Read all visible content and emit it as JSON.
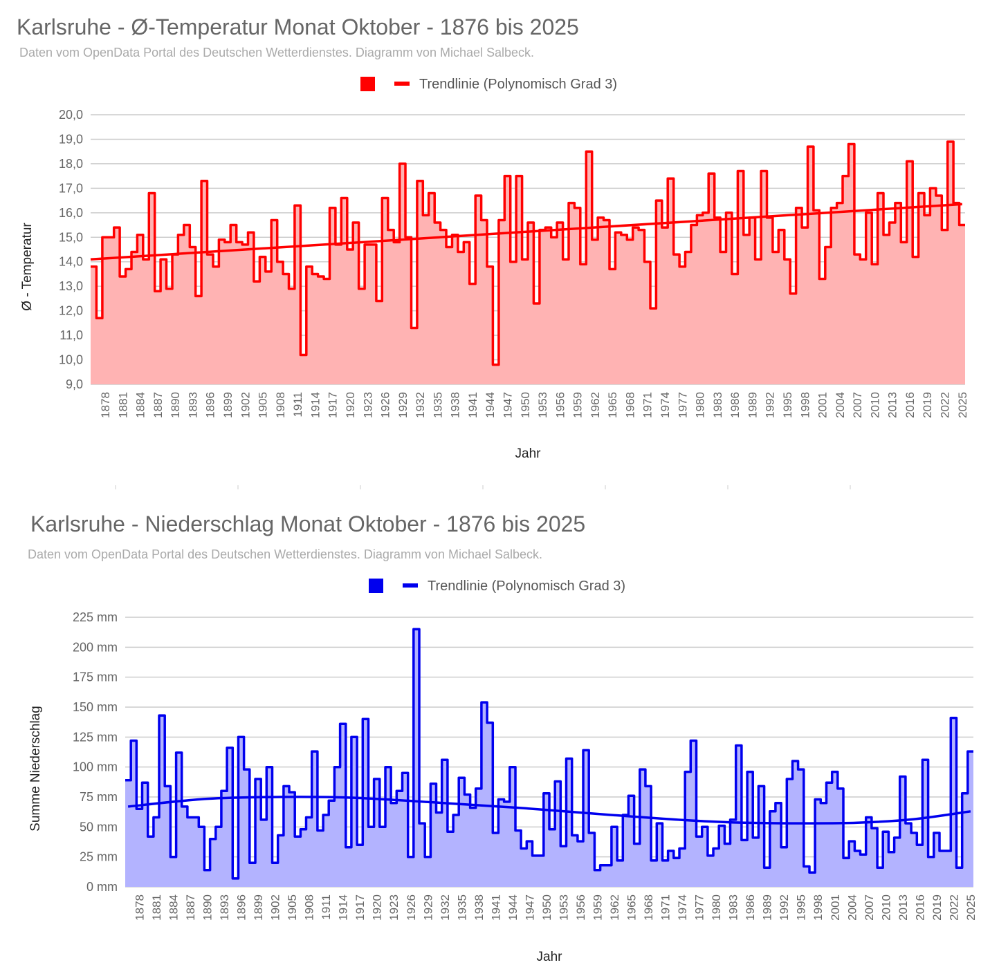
{
  "chart_data": [
    {
      "type": "area",
      "title": "Karlsruhe - Ø-Temperatur Monat Oktober - 1876 bis 2025",
      "subtitle": "Daten vom OpenData Portal des Deutschen Wetterdienstes. Diagramm von Michael Salbeck.",
      "legend_label": "Trendlinie (Polynomisch Grad 3)",
      "legend_position": "top-center",
      "xlabel": "Jahr",
      "ylabel": "Ø - Temperatur",
      "ylim": [
        9,
        20
      ],
      "yticks": [
        "9,0",
        "10,0",
        "11,0",
        "12,0",
        "13,0",
        "14,0",
        "15,0",
        "16,0",
        "17,0",
        "18,0",
        "19,0",
        "20,0"
      ],
      "color": "#ff0000",
      "fill_color": "#ffb3b3",
      "x_start": 1876,
      "x_tick_labels": [
        "1878",
        "1881",
        "1884",
        "1887",
        "1890",
        "1893",
        "1896",
        "1899",
        "1902",
        "1905",
        "1908",
        "1911",
        "1914",
        "1917",
        "1920",
        "1923",
        "1926",
        "1929",
        "1932",
        "1935",
        "1938",
        "1941",
        "1944",
        "1947",
        "1950",
        "1953",
        "1956",
        "1959",
        "1962",
        "1965",
        "1968",
        "1971",
        "1974",
        "1977",
        "1980",
        "1983",
        "1986",
        "1989",
        "1992",
        "1995",
        "1998",
        "2001",
        "2004",
        "2007",
        "2010",
        "2013",
        "2016",
        "2019",
        "2022",
        "2025"
      ],
      "values": [
        13.8,
        11.7,
        15.0,
        15.0,
        15.4,
        13.4,
        13.7,
        14.4,
        15.1,
        14.1,
        16.8,
        12.8,
        14.1,
        12.9,
        14.3,
        15.1,
        15.5,
        14.6,
        12.6,
        17.3,
        14.3,
        13.8,
        14.9,
        14.8,
        15.5,
        14.8,
        14.7,
        15.2,
        13.2,
        14.2,
        13.6,
        15.7,
        14.0,
        13.5,
        12.9,
        16.3,
        10.2,
        13.8,
        13.5,
        13.4,
        13.3,
        16.2,
        14.7,
        16.6,
        14.5,
        15.6,
        12.9,
        14.7,
        14.7,
        12.4,
        16.6,
        15.3,
        14.8,
        18.0,
        15.0,
        11.3,
        17.3,
        15.9,
        16.8,
        15.6,
        15.3,
        14.6,
        15.1,
        14.4,
        14.8,
        13.1,
        16.7,
        15.7,
        13.8,
        9.8,
        15.7,
        17.5,
        14.0,
        17.5,
        14.1,
        15.6,
        12.3,
        15.3,
        15.4,
        15.0,
        15.6,
        14.1,
        16.4,
        16.2,
        13.9,
        18.5,
        14.9,
        15.8,
        15.7,
        13.7,
        15.2,
        15.1,
        14.9,
        15.4,
        15.3,
        14.0,
        12.1,
        16.5,
        15.4,
        17.4,
        14.3,
        13.8,
        14.4,
        15.5,
        15.9,
        16.0,
        17.6,
        15.8,
        14.4,
        16.0,
        13.5,
        17.7,
        15.1,
        15.8,
        14.1,
        17.7,
        15.8,
        14.4,
        15.3,
        14.1,
        12.7,
        16.2,
        15.4,
        18.7,
        16.1,
        13.3,
        14.6,
        16.2,
        16.4,
        17.5,
        18.8,
        14.3,
        14.1,
        16.0,
        13.9,
        16.8,
        15.1,
        15.6,
        16.4,
        14.8,
        18.1,
        14.2,
        16.8,
        15.9,
        17.0,
        16.7,
        15.3,
        18.9,
        16.4,
        15.5
      ],
      "trend": {
        "label": "Trendlinie (Polynomisch Grad 3)",
        "start": 14.1,
        "end": 16.35
      }
    },
    {
      "type": "area",
      "title": "Karlsruhe - Niederschlag Monat Oktober - 1876 bis 2025",
      "subtitle": "Daten vom OpenData Portal des Deutschen Wetterdienstes. Diagramm von Michael Salbeck.",
      "legend_label": "Trendlinie (Polynomisch Grad 3)",
      "legend_position": "top-center",
      "xlabel": "Jahr",
      "ylabel": "Summe Niederschlag",
      "ylim": [
        0,
        225
      ],
      "yticks": [
        "0 mm",
        "25 mm",
        "50 mm",
        "75 mm",
        "100 mm",
        "125 mm",
        "150 mm",
        "175 mm",
        "200 mm",
        "225 mm"
      ],
      "color": "#0000ee",
      "fill_color": "#b3b3ff",
      "x_start": 1876,
      "x_tick_labels": [
        "1878",
        "1881",
        "1884",
        "1887",
        "1890",
        "1893",
        "1896",
        "1899",
        "1902",
        "1905",
        "1908",
        "1911",
        "1914",
        "1917",
        "1920",
        "1923",
        "1926",
        "1929",
        "1932",
        "1935",
        "1938",
        "1941",
        "1944",
        "1947",
        "1950",
        "1953",
        "1956",
        "1959",
        "1962",
        "1965",
        "1968",
        "1971",
        "1974",
        "1977",
        "1980",
        "1983",
        "1986",
        "1989",
        "1992",
        "1995",
        "1998",
        "2001",
        "2004",
        "2007",
        "2010",
        "2013",
        "2016",
        "2019",
        "2022",
        "2025"
      ],
      "values": [
        89,
        122,
        65,
        87,
        42,
        58,
        143,
        84,
        25,
        112,
        67,
        58,
        58,
        50,
        14,
        40,
        50,
        80,
        116,
        7,
        125,
        98,
        20,
        90,
        56,
        100,
        20,
        43,
        84,
        79,
        42,
        48,
        58,
        113,
        47,
        60,
        72,
        100,
        136,
        33,
        125,
        35,
        140,
        50,
        90,
        50,
        100,
        70,
        80,
        95,
        25,
        215,
        53,
        25,
        86,
        62,
        106,
        46,
        60,
        91,
        77,
        66,
        82,
        154,
        137,
        45,
        73,
        71,
        100,
        47,
        32,
        38,
        26,
        26,
        78,
        48,
        88,
        34,
        107,
        43,
        38,
        114,
        45,
        14,
        18,
        18,
        50,
        22,
        60,
        76,
        36,
        98,
        84,
        22,
        53,
        22,
        30,
        24,
        32,
        96,
        122,
        42,
        50,
        26,
        32,
        51,
        36,
        56,
        118,
        39,
        96,
        41,
        84,
        16,
        63,
        70,
        33,
        90,
        105,
        98,
        17,
        12,
        73,
        70,
        87,
        96,
        82,
        24,
        38,
        30,
        27,
        58,
        49,
        16,
        46,
        29,
        41,
        92,
        53,
        45,
        35,
        106,
        25,
        45,
        30,
        30,
        141,
        16,
        78,
        113
      ],
      "trend": {
        "label": "Trendlinie (Polynomisch Grad 3)",
        "points": [
          [
            1876,
            67
          ],
          [
            1890,
            73.5
          ],
          [
            1903,
            75
          ],
          [
            1915,
            74.5
          ],
          [
            1930,
            70.5
          ],
          [
            1945,
            66
          ],
          [
            1960,
            60.5
          ],
          [
            1975,
            55.5
          ],
          [
            1985,
            53.5
          ],
          [
            1995,
            53
          ],
          [
            2005,
            53.5
          ],
          [
            2015,
            56.5
          ],
          [
            2025,
            63
          ]
        ]
      }
    }
  ]
}
